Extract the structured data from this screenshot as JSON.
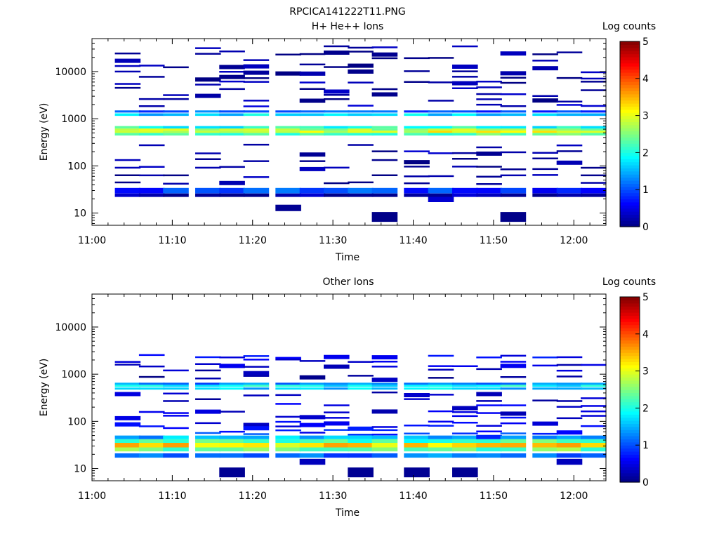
{
  "figure": {
    "title": "RPCICA141222T11.PNG"
  },
  "colormap": {
    "stops": [
      "#00007f",
      "#0000ff",
      "#007fff",
      "#00ffff",
      "#7fff7f",
      "#ffff00",
      "#ff7f00",
      "#ff0000",
      "#7f0000"
    ]
  },
  "chart_data": [
    {
      "type": "heatmap",
      "title": "H+ He++ Ions",
      "xlabel": "Time",
      "ylabel": "Energy (eV)",
      "colorbar_label": "Log counts",
      "x_ticks": [
        "11:00",
        "11:10",
        "11:20",
        "11:30",
        "11:40",
        "11:50",
        "12:00"
      ],
      "xlim": [
        "11:00",
        "12:04"
      ],
      "y_scale": "log",
      "ylim": [
        5.5,
        50000
      ],
      "y_ticks": [
        "10",
        "100",
        "1000",
        "10000"
      ],
      "clim": [
        0,
        5
      ],
      "c_ticks": [
        "0",
        "1",
        "2",
        "3",
        "4",
        "5"
      ],
      "time_bins": [
        "11:03",
        "11:06",
        "11:09",
        "11:13",
        "11:16",
        "11:19",
        "11:23",
        "11:26",
        "11:29",
        "11:32",
        "11:35",
        "11:39",
        "11:42",
        "11:45",
        "11:48",
        "11:51",
        "11:55",
        "11:58",
        "12:01"
      ],
      "bands": [
        {
          "e_min": 440,
          "e_max": 500,
          "value": 2.2
        },
        {
          "e_min": 500,
          "e_max": 560,
          "value": 3.0
        },
        {
          "e_min": 560,
          "e_max": 620,
          "value": 2.7
        },
        {
          "e_min": 620,
          "e_max": 700,
          "value": 2.0
        },
        {
          "e_min": 1150,
          "e_max": 1300,
          "value": 1.7
        },
        {
          "e_min": 1350,
          "e_max": 1500,
          "value": 1.0
        },
        {
          "e_min": 26,
          "e_max": 34,
          "value": 0.9
        },
        {
          "e_min": 22,
          "e_max": 26,
          "value": 0.1
        }
      ],
      "sparse_lines": [
        {
          "e": 2000,
          "value": 0.3
        },
        {
          "e": 2600,
          "value": 0.2
        },
        {
          "e": 3400,
          "value": 0.2
        },
        {
          "e": 4500,
          "value": 0.2
        },
        {
          "e": 6000,
          "value": 0.2
        },
        {
          "e": 8000,
          "value": 0.15
        },
        {
          "e": 10500,
          "value": 0.15
        },
        {
          "e": 14000,
          "value": 0.15
        },
        {
          "e": 19000,
          "value": 0.15
        },
        {
          "e": 26000,
          "value": 0.15
        },
        {
          "e": 35000,
          "value": 0.15
        },
        {
          "e": 280,
          "value": 0.2
        },
        {
          "e": 200,
          "value": 0.2
        },
        {
          "e": 140,
          "value": 0.15
        },
        {
          "e": 95,
          "value": 0.15
        },
        {
          "e": 65,
          "value": 0.15
        },
        {
          "e": 45,
          "value": 0.15
        }
      ],
      "blocks": [
        {
          "time_index": 6,
          "e_min": 11,
          "e_max": 15,
          "value": 0.1
        },
        {
          "time_index": 10,
          "e_min": 6.5,
          "e_max": 10.5,
          "value": 0.05
        },
        {
          "time_index": 15,
          "e_min": 6.5,
          "e_max": 10.5,
          "value": 0.05
        },
        {
          "time_index": 12,
          "e_min": 17,
          "e_max": 22,
          "value": 0.4
        }
      ]
    },
    {
      "type": "heatmap",
      "title": "Other Ions",
      "xlabel": "Time",
      "ylabel": "Energy (eV)",
      "colorbar_label": "Log counts",
      "x_ticks": [
        "11:00",
        "11:10",
        "11:20",
        "11:30",
        "11:40",
        "11:50",
        "12:00"
      ],
      "xlim": [
        "11:00",
        "12:04"
      ],
      "y_scale": "log",
      "ylim": [
        5.5,
        50000
      ],
      "y_ticks": [
        "10",
        "100",
        "1000",
        "10000"
      ],
      "clim": [
        0,
        5
      ],
      "c_ticks": [
        "0",
        "1",
        "2",
        "3",
        "4",
        "5"
      ],
      "time_bins": [
        "11:03",
        "11:06",
        "11:09",
        "11:13",
        "11:16",
        "11:19",
        "11:23",
        "11:26",
        "11:29",
        "11:32",
        "11:35",
        "11:39",
        "11:42",
        "11:45",
        "11:48",
        "11:51",
        "11:55",
        "11:58",
        "12:01"
      ],
      "bands": [
        {
          "e_min": 23,
          "e_max": 28,
          "value": 2.4
        },
        {
          "e_min": 28,
          "e_max": 35,
          "value": 3.3
        },
        {
          "e_min": 35,
          "e_max": 42,
          "value": 2.2
        },
        {
          "e_min": 17,
          "e_max": 21,
          "value": 1.2
        },
        {
          "e_min": 42,
          "e_max": 50,
          "value": 1.5
        },
        {
          "e_min": 470,
          "e_max": 520,
          "value": 1.6
        },
        {
          "e_min": 540,
          "e_max": 600,
          "value": 1.9
        },
        {
          "e_min": 600,
          "e_max": 660,
          "value": 1.2
        }
      ],
      "sparse_lines": [
        {
          "e": 2500,
          "value": 0.6
        },
        {
          "e": 2000,
          "value": 0.5
        },
        {
          "e": 1600,
          "value": 0.4
        },
        {
          "e": 1250,
          "value": 0.3
        },
        {
          "e": 900,
          "value": 0.2
        },
        {
          "e": 400,
          "value": 0.3
        },
        {
          "e": 300,
          "value": 0.3
        },
        {
          "e": 230,
          "value": 0.5
        },
        {
          "e": 170,
          "value": 0.4
        },
        {
          "e": 130,
          "value": 0.5
        },
        {
          "e": 100,
          "value": 0.5
        },
        {
          "e": 80,
          "value": 0.6
        },
        {
          "e": 65,
          "value": 0.7
        },
        {
          "e": 55,
          "value": 0.9
        }
      ],
      "blocks": [
        {
          "time_index": 4,
          "e_min": 6.5,
          "e_max": 10.5,
          "value": 0.1
        },
        {
          "time_index": 9,
          "e_min": 6.5,
          "e_max": 10.5,
          "value": 0.1
        },
        {
          "time_index": 11,
          "e_min": 6.5,
          "e_max": 10.5,
          "value": 0.1
        },
        {
          "time_index": 13,
          "e_min": 6.5,
          "e_max": 10.5,
          "value": 0.1
        },
        {
          "time_index": 7,
          "e_min": 12,
          "e_max": 16,
          "value": 0.3
        },
        {
          "time_index": 17,
          "e_min": 12,
          "e_max": 16,
          "value": 0.3
        }
      ]
    }
  ]
}
